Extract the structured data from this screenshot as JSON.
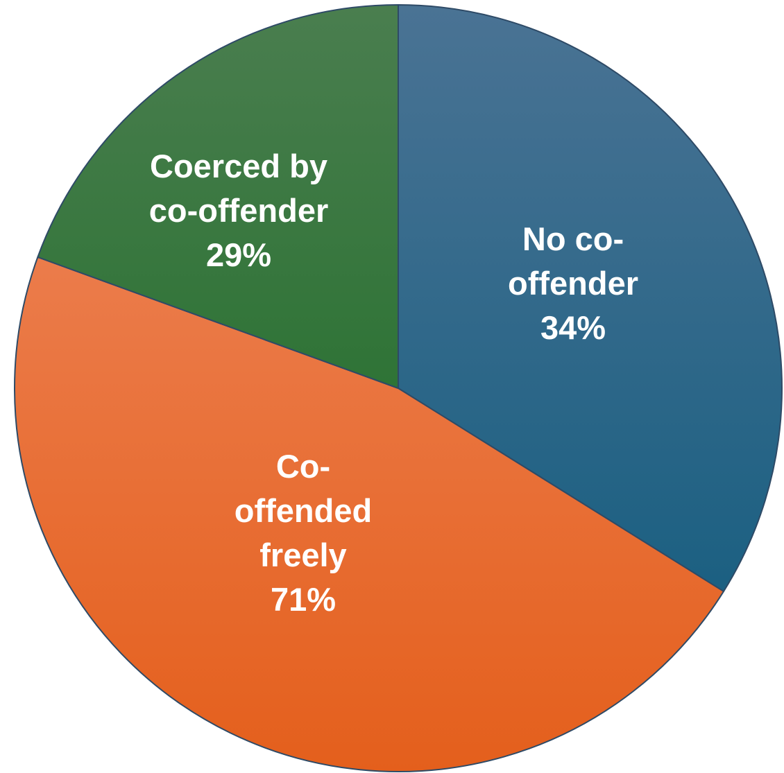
{
  "chart_data": {
    "type": "pie",
    "title": "",
    "slices": [
      {
        "label_lines": [
          "No co-",
          "offender"
        ],
        "value_label": "34%",
        "value": 34,
        "color_top": "#4a7394",
        "color_bottom": "#0d5a7c"
      },
      {
        "label_lines": [
          "Co-",
          "offended",
          "freely"
        ],
        "value_label": "71%",
        "value": 71,
        "color_top": "#ef8a62",
        "color_bottom": "#e45f1c"
      },
      {
        "label_lines": [
          "Coerced by",
          "co-offender"
        ],
        "value_label": "29%",
        "value": 29,
        "color_top": "#4a7e4f",
        "color_bottom": "#13691d"
      }
    ],
    "legend": "none",
    "outline_color": "#2e4a66"
  }
}
